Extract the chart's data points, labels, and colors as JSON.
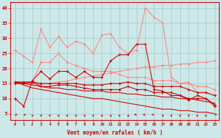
{
  "x": [
    0,
    1,
    2,
    3,
    4,
    5,
    6,
    7,
    8,
    9,
    10,
    11,
    12,
    13,
    14,
    15,
    16,
    17,
    18,
    19,
    20,
    21,
    22,
    23
  ],
  "background_color": "#cce8e8",
  "grid_color": "#aacccc",
  "xlabel": "Vent moyen/en rafales ( km/h )",
  "ylim": [
    3,
    42
  ],
  "yticks": [
    5,
    10,
    15,
    20,
    25,
    30,
    35,
    40
  ],
  "line1_color": "#ff8888",
  "line2_color": "#ffaaaa",
  "line3_color": "#ffbbbb",
  "dark_red": "#cc0000",
  "spine_color": "#cc0000",
  "pink_spiky": [
    26,
    24,
    22,
    33,
    27,
    30.5,
    27,
    29,
    28,
    25,
    31,
    31.5,
    27,
    25,
    26,
    40,
    37,
    35,
    17,
    15,
    15.5,
    12,
    12,
    11
  ],
  "pink_bump": [
    15.5,
    15.5,
    15.5,
    22,
    22,
    25,
    22,
    21,
    20,
    19,
    19,
    19,
    18,
    17,
    17,
    17,
    16,
    16,
    16,
    15,
    15,
    14,
    14,
    13
  ],
  "pink_rising": [
    15.5,
    15.3,
    15.0,
    14.8,
    15.0,
    15.5,
    15.8,
    16.5,
    17.0,
    17.5,
    18.0,
    18.5,
    19.0,
    19.5,
    20.0,
    20.5,
    20.5,
    21.0,
    21.0,
    21.5,
    21.5,
    22.0,
    22.0,
    22.5
  ],
  "red_jagged": [
    10,
    7.5,
    16,
    19,
    16.5,
    19,
    19,
    17,
    19,
    17,
    17,
    22.5,
    24.5,
    24.5,
    28,
    28,
    13,
    12.5,
    11,
    11,
    9.5,
    11,
    10,
    7.5
  ],
  "red_flat_low": [
    15.0,
    15.0,
    15.5,
    14.0,
    14.0,
    14.5,
    14.5,
    14.0,
    13.5,
    13.0,
    13.0,
    13.0,
    13.0,
    14.0,
    13.0,
    13.0,
    12.0,
    12.0,
    12.0,
    11.0,
    10.0,
    10.0,
    10.0,
    8.0
  ],
  "red_flat_mid": [
    15.5,
    15.5,
    15.5,
    15.0,
    15.0,
    15.0,
    15.0,
    15.0,
    14.5,
    14.5,
    14.5,
    15.0,
    15.0,
    15.5,
    15.0,
    15.0,
    14.0,
    14.0,
    14.0,
    14.0,
    13.0,
    12.0,
    12.0,
    11.0
  ],
  "red_declining1": [
    15.5,
    15.0,
    14.5,
    14.0,
    13.5,
    13.5,
    13.0,
    13.0,
    12.5,
    12.5,
    12.5,
    12.0,
    12.0,
    11.5,
    11.5,
    11.0,
    11.0,
    10.5,
    10.5,
    10.0,
    10.0,
    9.5,
    9.0,
    8.5
  ],
  "red_declining2": [
    15.5,
    14.5,
    13.5,
    13.0,
    12.5,
    12.0,
    11.5,
    11.0,
    10.5,
    10.0,
    10.0,
    9.5,
    9.0,
    8.5,
    8.0,
    7.5,
    7.0,
    6.5,
    6.5,
    6.0,
    6.0,
    5.5,
    5.5,
    5.0
  ],
  "arrow_angles_deg": [
    -135,
    -135,
    -100,
    -80,
    -80,
    -70,
    -70,
    -70,
    -70,
    -70,
    -70,
    -60,
    -60,
    -55,
    -50,
    -50,
    -50,
    -60,
    -70,
    -80,
    -100,
    -110,
    -120,
    -130
  ]
}
